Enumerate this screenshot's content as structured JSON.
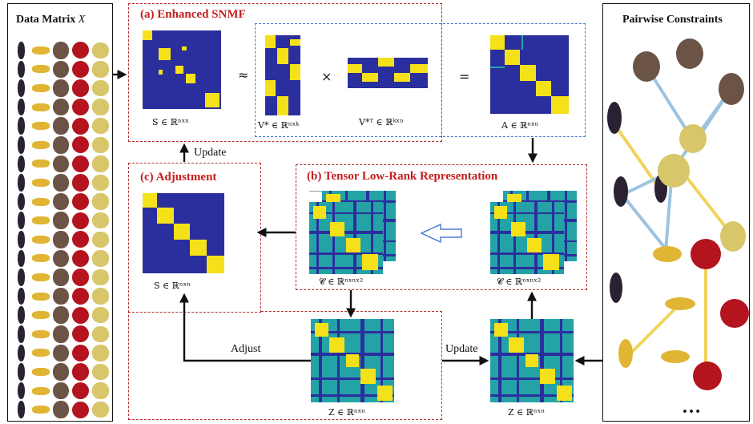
{
  "left_panel": {
    "title": "Data Matrix",
    "title_var": "X"
  },
  "right_panel": {
    "title": "Pairwise Constraints",
    "ellipsis": "…"
  },
  "snmf": {
    "title": "(a) Enhanced SNMF",
    "s_label": "S ∈ ℝⁿˣⁿ",
    "approx": "≈",
    "v_label": "V* ∈ ℝⁿˣᵏ",
    "times": "×",
    "vt_label": "V*ᵀ ∈ ℝᵏˣⁿ",
    "equals": "=",
    "a_label": "A ∈ ℝⁿˣⁿ"
  },
  "adjust_panel": {
    "title": "(c) Adjustment",
    "s_label": "S ∈ ℝⁿˣⁿ"
  },
  "tensor": {
    "title": "(b) Tensor Low-Rank Representation",
    "c_label_left": "𝓒 ∈ ℝⁿˣⁿˣ²",
    "c_label_right": "𝓒 ∈ ℝⁿˣⁿˣ²"
  },
  "bottom": {
    "z_label_center": "Z ∈ ℝⁿˣⁿ",
    "z_label_right": "Z ∈ ℝⁿˣⁿ"
  },
  "arrows": {
    "update_top": "Update",
    "adjust": "Adjust",
    "update_bottom": "Update"
  },
  "fruits": [
    "eggplant",
    "corn",
    "coconut",
    "cherry",
    "potato"
  ],
  "colors": {
    "red_title": "#c41e1e",
    "dash_red": "#b23030",
    "dash_blue": "#4a78d8",
    "mat_bg": "#2b2f9e",
    "mat_yellow": "#f5e11a",
    "mat_teal": "#24a3a6",
    "link_blue": "#9cc3e2",
    "link_yellow": "#f2d35a"
  }
}
